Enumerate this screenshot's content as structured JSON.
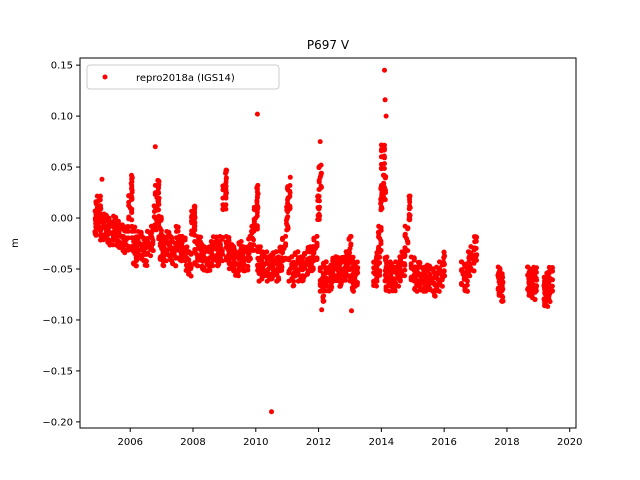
{
  "chart_data": {
    "type": "scatter",
    "title": "P697 V",
    "xlabel": "",
    "ylabel": "m",
    "xlim": [
      2004.4,
      2020.2
    ],
    "ylim": [
      -0.206,
      0.157
    ],
    "x_ticks": [
      2006,
      2008,
      2010,
      2012,
      2014,
      2016,
      2018,
      2020
    ],
    "x_tick_labels": [
      "2006",
      "2008",
      "2010",
      "2012",
      "2014",
      "2016",
      "2018",
      "2020"
    ],
    "y_ticks": [
      -0.2,
      -0.15,
      -0.1,
      -0.05,
      0.0,
      0.05,
      0.1,
      0.15
    ],
    "y_tick_labels": [
      "−0.20",
      "−0.15",
      "−0.10",
      "−0.05",
      "0.00",
      "0.05",
      "0.10",
      "0.15"
    ],
    "grid": false,
    "legend": {
      "position": "top-left"
    },
    "color": "#ff0000",
    "series": [
      {
        "name": "repro2018a (IGS14)",
        "x": [
          2004.9,
          2004.95,
          2005.0,
          2005.05,
          2005.1,
          2005.2,
          2005.3,
          2005.4,
          2005.5,
          2005.6,
          2005.7,
          2005.8,
          2005.9,
          2006.0,
          2006.05,
          2006.1,
          2006.15,
          2006.2,
          2006.3,
          2006.4,
          2006.5,
          2006.6,
          2006.7,
          2006.8,
          2006.85,
          2006.9,
          2006.95,
          2007.0,
          2007.05,
          2007.1,
          2007.2,
          2007.3,
          2007.4,
          2007.5,
          2007.6,
          2007.7,
          2007.8,
          2007.9,
          2008.0,
          2008.05,
          2008.1,
          2008.2,
          2008.3,
          2008.4,
          2008.5,
          2008.6,
          2008.7,
          2008.8,
          2008.9,
          2009.0,
          2009.05,
          2009.1,
          2009.2,
          2009.3,
          2009.4,
          2009.5,
          2009.6,
          2009.7,
          2009.8,
          2009.9,
          2010.0,
          2010.05,
          2010.1,
          2010.15,
          2010.2,
          2010.3,
          2010.4,
          2010.5,
          2010.6,
          2010.7,
          2010.8,
          2010.9,
          2011.0,
          2011.05,
          2011.1,
          2011.2,
          2011.3,
          2011.4,
          2011.5,
          2011.6,
          2011.7,
          2011.8,
          2011.9,
          2012.0,
          2012.05,
          2012.1,
          2012.15,
          2012.2,
          2012.3,
          2012.4,
          2012.5,
          2012.6,
          2012.7,
          2012.8,
          2012.9,
          2013.0,
          2013.05,
          2013.1,
          2013.2,
          2013.8,
          2013.85,
          2013.9,
          2013.95,
          2014.0,
          2014.05,
          2014.1,
          2014.15,
          2014.2,
          2014.3,
          2014.4,
          2014.5,
          2014.6,
          2014.7,
          2014.8,
          2014.9,
          2015.0,
          2015.1,
          2015.2,
          2015.3,
          2015.4,
          2015.5,
          2015.6,
          2015.7,
          2015.8,
          2015.9,
          2016.0,
          2016.6,
          2016.7,
          2016.8,
          2016.9,
          2017.0,
          2017.75,
          2017.8,
          2017.85,
          2018.7,
          2018.75,
          2018.8,
          2018.85,
          2018.9,
          2019.2,
          2019.25,
          2019.3,
          2019.35,
          2019.4
        ],
        "y": [
          -0.005,
          0.005,
          0.01,
          0.0,
          -0.01,
          -0.008,
          -0.012,
          -0.015,
          -0.01,
          -0.015,
          -0.018,
          -0.022,
          -0.02,
          0.01,
          0.03,
          -0.02,
          -0.035,
          -0.03,
          -0.025,
          -0.03,
          -0.035,
          -0.025,
          -0.02,
          0.0,
          0.02,
          0.025,
          -0.01,
          -0.03,
          -0.035,
          -0.03,
          -0.025,
          -0.03,
          -0.035,
          -0.02,
          -0.03,
          -0.03,
          -0.04,
          -0.045,
          -0.005,
          0.0,
          -0.035,
          -0.03,
          -0.038,
          -0.04,
          -0.04,
          -0.035,
          -0.03,
          -0.035,
          -0.03,
          0.02,
          0.035,
          -0.03,
          -0.038,
          -0.04,
          -0.045,
          -0.035,
          -0.04,
          -0.04,
          -0.03,
          -0.02,
          0.0,
          0.02,
          -0.04,
          -0.05,
          -0.045,
          -0.045,
          -0.05,
          -0.048,
          -0.045,
          -0.05,
          -0.04,
          -0.03,
          0.0,
          0.02,
          -0.05,
          -0.055,
          -0.045,
          -0.05,
          -0.05,
          -0.045,
          -0.04,
          -0.04,
          -0.03,
          0.01,
          0.04,
          -0.06,
          -0.07,
          -0.055,
          -0.06,
          -0.058,
          -0.05,
          -0.05,
          -0.055,
          -0.05,
          -0.045,
          -0.03,
          -0.05,
          -0.06,
          -0.055,
          -0.055,
          -0.05,
          -0.045,
          -0.02,
          0.02,
          0.06,
          0.03,
          -0.05,
          -0.06,
          -0.055,
          -0.06,
          -0.055,
          -0.05,
          -0.045,
          -0.02,
          0.01,
          -0.05,
          -0.06,
          -0.055,
          -0.06,
          -0.06,
          -0.058,
          -0.06,
          -0.065,
          -0.06,
          -0.055,
          -0.045,
          -0.055,
          -0.06,
          -0.045,
          -0.04,
          -0.03,
          -0.06,
          -0.065,
          -0.07,
          -0.06,
          -0.065,
          -0.062,
          -0.068,
          -0.06,
          -0.07,
          -0.075,
          -0.065,
          -0.07,
          -0.06
        ],
        "outliers_x": [
          2005.1,
          2006.8,
          2010.05,
          2010.5,
          2011.1,
          2012.05,
          2012.1,
          2013.05,
          2014.1,
          2014.12,
          2014.15
        ],
        "outliers_y": [
          0.038,
          0.07,
          0.102,
          -0.19,
          0.04,
          0.075,
          -0.09,
          -0.091,
          0.145,
          0.116,
          0.1
        ]
      }
    ]
  }
}
